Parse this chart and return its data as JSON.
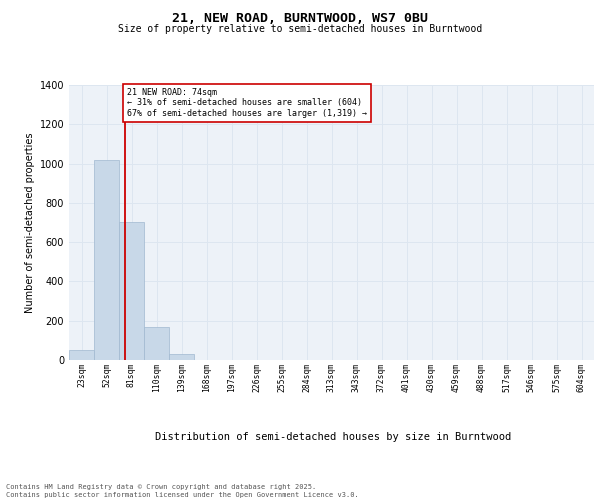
{
  "title": "21, NEW ROAD, BURNTWOOD, WS7 0BU",
  "subtitle": "Size of property relative to semi-detached houses in Burntwood",
  "xlabel": "Distribution of semi-detached houses by size in Burntwood",
  "ylabel": "Number of semi-detached properties",
  "bar_color": "#c8d8e8",
  "bar_edge_color": "#a0b8d0",
  "categories": [
    "23sqm",
    "52sqm",
    "81sqm",
    "110sqm",
    "139sqm",
    "168sqm",
    "197sqm",
    "226sqm",
    "255sqm",
    "284sqm",
    "313sqm",
    "343sqm",
    "372sqm",
    "401sqm",
    "430sqm",
    "459sqm",
    "488sqm",
    "517sqm",
    "546sqm",
    "575sqm",
    "604sqm"
  ],
  "values": [
    50,
    1020,
    700,
    170,
    30,
    2,
    1,
    0,
    0,
    0,
    0,
    0,
    0,
    0,
    0,
    0,
    0,
    0,
    0,
    0,
    0
  ],
  "ylim": [
    0,
    1400
  ],
  "yticks": [
    0,
    200,
    400,
    600,
    800,
    1000,
    1200,
    1400
  ],
  "property_size": 74,
  "pct_smaller": 31,
  "pct_larger": 67,
  "n_smaller": 604,
  "n_larger": 1319,
  "red_line_color": "#cc0000",
  "annotation_box_color": "#cc0000",
  "grid_color": "#dde6f0",
  "background_color": "#edf2f8",
  "footer1": "Contains HM Land Registry data © Crown copyright and database right 2025.",
  "footer2": "Contains public sector information licensed under the Open Government Licence v3.0."
}
